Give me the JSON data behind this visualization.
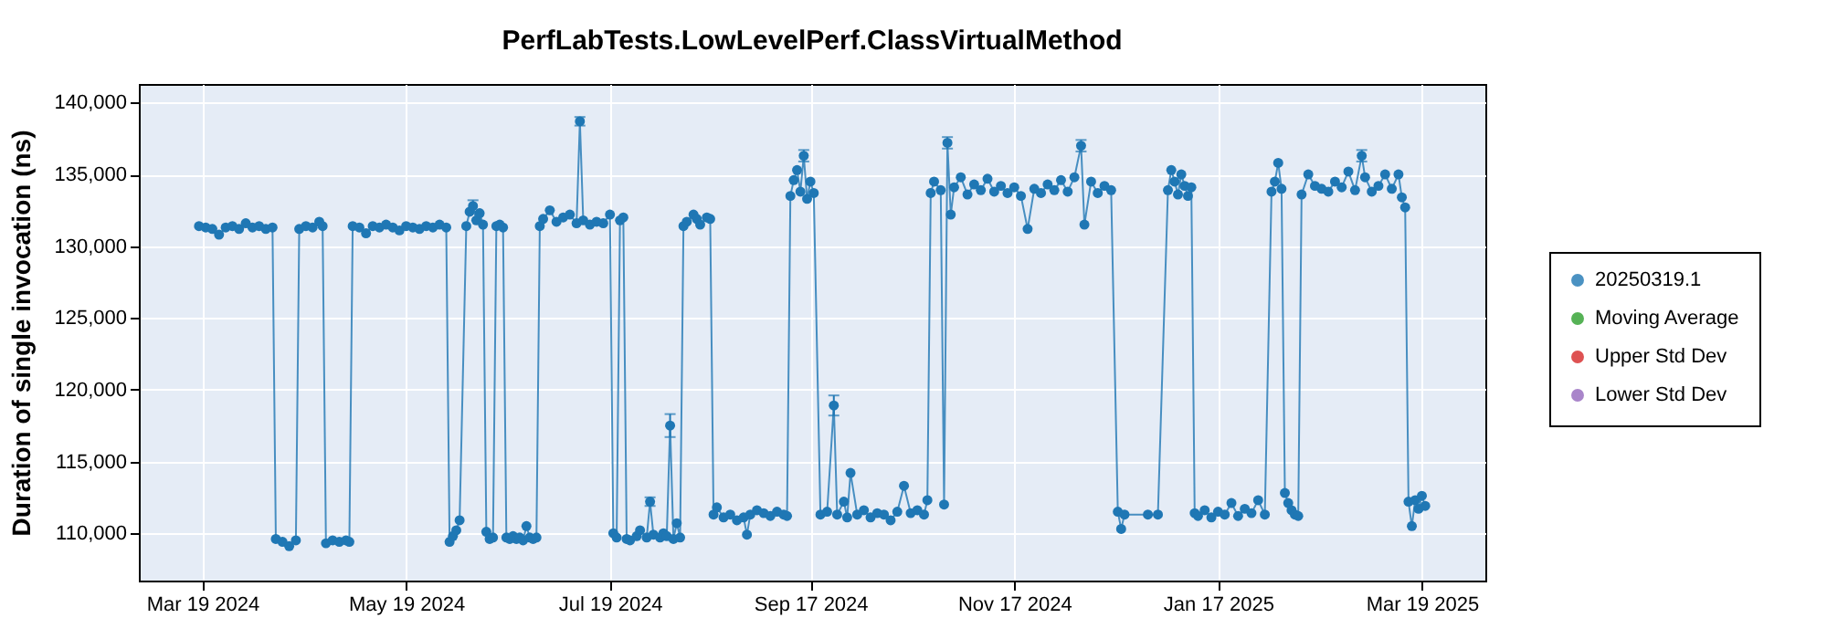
{
  "chart_data": {
    "type": "line",
    "title": "PerfLabTests.LowLevelPerf.ClassVirtualMethod",
    "ylabel": "Duration of single invocation (ns)",
    "xlim": [
      "2024-02-29",
      "2025-04-07"
    ],
    "xticks": [
      {
        "value": "2024-03-19",
        "label": "Mar 19 2024"
      },
      {
        "value": "2024-05-19",
        "label": "May 19 2024"
      },
      {
        "value": "2024-07-19",
        "label": "Jul 19 2024"
      },
      {
        "value": "2024-09-17",
        "label": "Sep 17 2024"
      },
      {
        "value": "2024-11-17",
        "label": "Nov 17 2024"
      },
      {
        "value": "2025-01-17",
        "label": "Jan 17 2025"
      },
      {
        "value": "2025-03-19",
        "label": "Mar 19 2025"
      }
    ],
    "ylim": [
      106700,
      141300
    ],
    "yticks": [
      {
        "value": 110000,
        "label": "110,000"
      },
      {
        "value": 115000,
        "label": "115,000"
      },
      {
        "value": 120000,
        "label": "120,000"
      },
      {
        "value": 125000,
        "label": "125,000"
      },
      {
        "value": 130000,
        "label": "130,000"
      },
      {
        "value": 135000,
        "label": "135,000"
      },
      {
        "value": 140000,
        "label": "140,000"
      }
    ],
    "grid": true,
    "legend": "right",
    "marker": "circle",
    "line_style": "solid",
    "series": [
      {
        "name": "20250319.1",
        "color": "#1f77b4",
        "x": [
          "2024-03-18",
          "2024-03-20",
          "2024-03-22",
          "2024-03-24",
          "2024-03-26",
          "2024-03-28",
          "2024-03-30",
          "2024-04-01",
          "2024-04-03",
          "2024-04-05",
          "2024-04-07",
          "2024-04-09",
          "2024-04-10",
          "2024-04-12",
          "2024-04-14",
          "2024-04-16",
          "2024-04-17",
          "2024-04-19",
          "2024-04-21",
          "2024-04-23",
          "2024-04-24",
          "2024-04-25",
          "2024-04-27",
          "2024-04-29",
          "2024-05-01",
          "2024-05-02",
          "2024-05-03",
          "2024-05-05",
          "2024-05-07",
          "2024-05-09",
          "2024-05-11",
          "2024-05-13",
          "2024-05-15",
          "2024-05-17",
          "2024-05-19",
          "2024-05-21",
          "2024-05-23",
          "2024-05-25",
          "2024-05-27",
          "2024-05-29",
          "2024-05-31",
          "2024-06-01",
          "2024-06-02",
          "2024-06-03",
          "2024-06-04",
          "2024-06-06",
          "2024-06-07",
          "2024-06-08",
          "2024-06-09",
          "2024-06-10",
          "2024-06-11",
          "2024-06-12",
          "2024-06-13",
          "2024-06-14",
          "2024-06-15",
          "2024-06-16",
          "2024-06-17",
          "2024-06-18",
          "2024-06-19",
          "2024-06-20",
          "2024-06-21",
          "2024-06-22",
          "2024-06-23",
          "2024-06-24",
          "2024-06-25",
          "2024-06-26",
          "2024-06-27",
          "2024-06-28",
          "2024-06-29",
          "2024-07-01",
          "2024-07-03",
          "2024-07-05",
          "2024-07-07",
          "2024-07-09",
          "2024-07-10",
          "2024-07-11",
          "2024-07-13",
          "2024-07-15",
          "2024-07-17",
          "2024-07-19",
          "2024-07-20",
          "2024-07-21",
          "2024-07-22",
          "2024-07-23",
          "2024-07-24",
          "2024-07-25",
          "2024-07-27",
          "2024-07-28",
          "2024-07-30",
          "2024-07-31",
          "2024-08-01",
          "2024-08-03",
          "2024-08-04",
          "2024-08-05",
          "2024-08-06",
          "2024-08-07",
          "2024-08-08",
          "2024-08-09",
          "2024-08-10",
          "2024-08-11",
          "2024-08-13",
          "2024-08-14",
          "2024-08-15",
          "2024-08-17",
          "2024-08-18",
          "2024-08-19",
          "2024-08-20",
          "2024-08-22",
          "2024-08-24",
          "2024-08-26",
          "2024-08-28",
          "2024-08-29",
          "2024-08-30",
          "2024-09-01",
          "2024-09-03",
          "2024-09-05",
          "2024-09-07",
          "2024-09-09",
          "2024-09-10",
          "2024-09-11",
          "2024-09-12",
          "2024-09-13",
          "2024-09-14",
          "2024-09-15",
          "2024-09-16",
          "2024-09-17",
          "2024-09-18",
          "2024-09-20",
          "2024-09-22",
          "2024-09-24",
          "2024-09-25",
          "2024-09-27",
          "2024-09-28",
          "2024-09-29",
          "2024-10-01",
          "2024-10-03",
          "2024-10-05",
          "2024-10-07",
          "2024-10-09",
          "2024-10-11",
          "2024-10-13",
          "2024-10-15",
          "2024-10-17",
          "2024-10-19",
          "2024-10-21",
          "2024-10-22",
          "2024-10-23",
          "2024-10-24",
          "2024-10-26",
          "2024-10-27",
          "2024-10-28",
          "2024-10-29",
          "2024-10-30",
          "2024-11-01",
          "2024-11-03",
          "2024-11-05",
          "2024-11-07",
          "2024-11-09",
          "2024-11-11",
          "2024-11-13",
          "2024-11-15",
          "2024-11-17",
          "2024-11-19",
          "2024-11-21",
          "2024-11-23",
          "2024-11-25",
          "2024-11-27",
          "2024-11-29",
          "2024-12-01",
          "2024-12-03",
          "2024-12-05",
          "2024-12-07",
          "2024-12-08",
          "2024-12-10",
          "2024-12-12",
          "2024-12-14",
          "2024-12-16",
          "2024-12-18",
          "2024-12-19",
          "2024-12-20",
          "2024-12-27",
          "2024-12-30",
          "2025-01-02",
          "2025-01-03",
          "2025-01-04",
          "2025-01-05",
          "2025-01-06",
          "2025-01-07",
          "2025-01-08",
          "2025-01-09",
          "2025-01-10",
          "2025-01-11",
          "2025-01-13",
          "2025-01-15",
          "2025-01-17",
          "2025-01-19",
          "2025-01-21",
          "2025-01-23",
          "2025-01-25",
          "2025-01-27",
          "2025-01-29",
          "2025-01-31",
          "2025-02-02",
          "2025-02-03",
          "2025-02-04",
          "2025-02-05",
          "2025-02-06",
          "2025-02-07",
          "2025-02-08",
          "2025-02-09",
          "2025-02-10",
          "2025-02-11",
          "2025-02-13",
          "2025-02-15",
          "2025-02-17",
          "2025-02-19",
          "2025-02-21",
          "2025-02-23",
          "2025-02-25",
          "2025-02-27",
          "2025-03-01",
          "2025-03-02",
          "2025-03-04",
          "2025-03-06",
          "2025-03-08",
          "2025-03-10",
          "2025-03-12",
          "2025-03-13",
          "2025-03-14",
          "2025-03-15",
          "2025-03-16",
          "2025-03-17",
          "2025-03-18",
          "2025-03-19",
          "2025-03-20"
        ],
        "values": [
          131400,
          131300,
          131200,
          130800,
          131300,
          131400,
          131200,
          131600,
          131300,
          131400,
          131200,
          131300,
          109600,
          109400,
          109100,
          109500,
          131200,
          131400,
          131300,
          131700,
          131400,
          109300,
          109500,
          109400,
          109500,
          109400,
          131400,
          131300,
          130900,
          131400,
          131300,
          131500,
          131300,
          131100,
          131400,
          131300,
          131200,
          131400,
          131300,
          131500,
          131300,
          109400,
          109800,
          110200,
          110900,
          131400,
          132400,
          132800,
          131800,
          132300,
          131500,
          110100,
          109600,
          109700,
          131400,
          131500,
          131300,
          109700,
          109600,
          109800,
          109600,
          109700,
          109500,
          110500,
          109700,
          109600,
          109700,
          131400,
          131900,
          132500,
          131700,
          132000,
          132200,
          131600,
          138700,
          131800,
          131500,
          131700,
          131600,
          132200,
          110000,
          109700,
          131800,
          132000,
          109600,
          109500,
          109800,
          110200,
          109700,
          112200,
          109900,
          109700,
          110000,
          109800,
          117500,
          109600,
          110700,
          109700,
          131400,
          131700,
          132200,
          131900,
          131500,
          132000,
          131900,
          111300,
          111800,
          111100,
          111300,
          110900,
          111100,
          109900,
          111300,
          111600,
          111400,
          111200,
          111500,
          111300,
          111200,
          133500,
          134600,
          135300,
          133800,
          136300,
          133300,
          134500,
          133700,
          111300,
          111500,
          118900,
          111300,
          112200,
          111100,
          114200,
          111300,
          111600,
          111100,
          111400,
          111300,
          110900,
          111500,
          113300,
          111400,
          111600,
          111300,
          112300,
          133700,
          134500,
          133900,
          112000,
          137200,
          132200,
          134100,
          134800,
          133600,
          134300,
          133900,
          134700,
          133800,
          134200,
          133700,
          134100,
          133500,
          131200,
          134000,
          133700,
          134300,
          133900,
          134600,
          133800,
          134800,
          137000,
          131500,
          134500,
          133700,
          134200,
          133900,
          111500,
          110300,
          111300,
          111300,
          111300,
          133900,
          135300,
          134500,
          133600,
          135000,
          134200,
          133500,
          134100,
          111400,
          111200,
          111600,
          111100,
          111500,
          111300,
          112100,
          111200,
          111700,
          111400,
          112300,
          111300,
          133800,
          134500,
          135800,
          134000,
          112800,
          112100,
          111600,
          111300,
          111200,
          133600,
          135000,
          134200,
          134000,
          133800,
          134500,
          134100,
          135200,
          133900,
          136300,
          134800,
          133800,
          134200,
          135000,
          134000,
          135000,
          133400,
          132700,
          112200,
          110500,
          112300,
          111700,
          112600,
          111900
        ],
        "errors": [
          null,
          null,
          null,
          null,
          null,
          null,
          null,
          null,
          null,
          null,
          null,
          null,
          null,
          null,
          null,
          null,
          null,
          null,
          null,
          null,
          null,
          null,
          null,
          null,
          null,
          null,
          null,
          null,
          null,
          null,
          null,
          null,
          null,
          null,
          null,
          null,
          null,
          null,
          null,
          null,
          null,
          null,
          null,
          null,
          null,
          null,
          null,
          400,
          null,
          null,
          null,
          null,
          null,
          null,
          null,
          null,
          null,
          null,
          null,
          null,
          null,
          null,
          null,
          null,
          null,
          null,
          null,
          null,
          null,
          null,
          null,
          null,
          null,
          null,
          300,
          null,
          null,
          null,
          null,
          null,
          null,
          null,
          null,
          null,
          null,
          null,
          null,
          null,
          null,
          300,
          null,
          null,
          null,
          null,
          800,
          null,
          null,
          null,
          null,
          null,
          null,
          null,
          null,
          null,
          null,
          null,
          null,
          null,
          null,
          null,
          null,
          null,
          null,
          null,
          null,
          null,
          null,
          null,
          null,
          null,
          null,
          null,
          null,
          400,
          null,
          null,
          null,
          null,
          null,
          700,
          null,
          null,
          null,
          null,
          null,
          null,
          null,
          null,
          null,
          null,
          null,
          null,
          null,
          null,
          null,
          null,
          null,
          null,
          null,
          null,
          400,
          null,
          null,
          null,
          null,
          null,
          null,
          null,
          null,
          null,
          null,
          null,
          null,
          null,
          null,
          null,
          null,
          null,
          null,
          null,
          null,
          400,
          null,
          null,
          null,
          null,
          null,
          null,
          null,
          null,
          null,
          null,
          null,
          null,
          null,
          null,
          null,
          null,
          null,
          null,
          null,
          null,
          null,
          null,
          null,
          null,
          null,
          null,
          null,
          null,
          null,
          null,
          null,
          null,
          null,
          null,
          null,
          null,
          null,
          null,
          null,
          null,
          null,
          null,
          null,
          null,
          null,
          null,
          null,
          null,
          400,
          null,
          null,
          null,
          null,
          null,
          null,
          null,
          null,
          null,
          null,
          null,
          null,
          null,
          null
        ]
      },
      {
        "name": "Moving Average",
        "color": "#2ca02c"
      },
      {
        "name": "Upper Std Dev",
        "color": "#d62728"
      },
      {
        "name": "Lower Std Dev",
        "color": "#9467bd"
      }
    ]
  }
}
